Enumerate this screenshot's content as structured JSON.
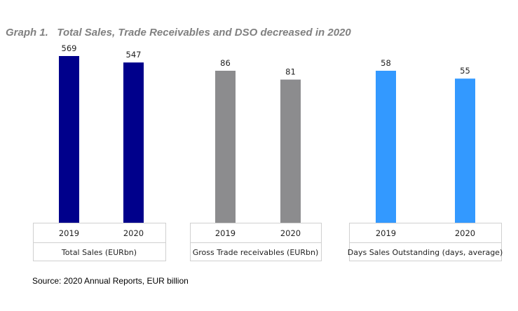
{
  "title": "Graph 1.   Total Sales, Trade Receivables and DSO decreased in 2020",
  "source": "Source: 2020 Annual Reports, EUR billion",
  "chart_data": [
    {
      "type": "bar",
      "categories": [
        "2019",
        "2020"
      ],
      "values": [
        569,
        547
      ],
      "xlabel": "Total Sales (EURbn)",
      "color": "#00008B"
    },
    {
      "type": "bar",
      "categories": [
        "2019",
        "2020"
      ],
      "values": [
        86,
        81
      ],
      "xlabel": "Gross Trade receivables (EURbn)",
      "color": "#8C8C8E"
    },
    {
      "type": "bar",
      "categories": [
        "2019",
        "2020"
      ],
      "values": [
        58,
        55
      ],
      "xlabel": "Days Sales Outstanding (days, average)",
      "color": "#3399FF"
    }
  ]
}
